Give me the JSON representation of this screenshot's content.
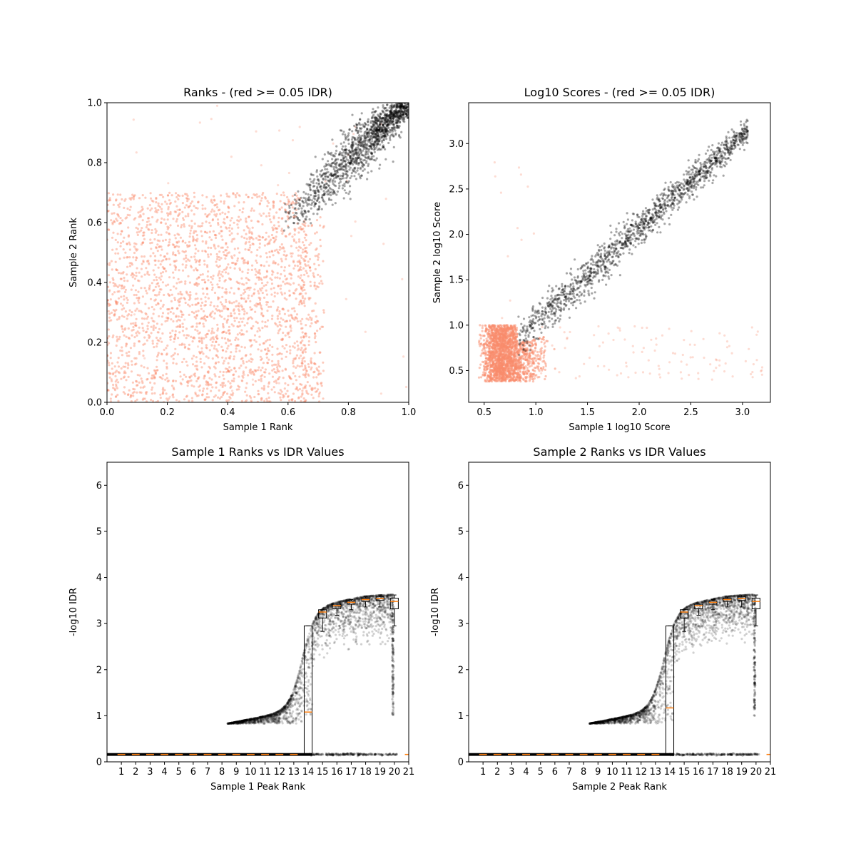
{
  "chart_data": [
    {
      "id": "ranks",
      "type": "scatter",
      "title": "Ranks - (red >= 0.05 IDR)",
      "xlabel": "Sample 1 Rank",
      "ylabel": "Sample 2 Rank",
      "xlim": [
        0,
        1.0
      ],
      "ylim": [
        0,
        1.0
      ],
      "xticks": [
        0.0,
        0.2,
        0.4,
        0.6,
        0.8,
        1.0
      ],
      "xtick_labels": [
        "0.0",
        "0.2",
        "0.4",
        "0.6",
        "0.8",
        "1.0"
      ],
      "yticks": [
        0.0,
        0.2,
        0.4,
        0.6,
        0.8,
        1.0
      ],
      "ytick_labels": [
        "0.0",
        "0.2",
        "0.4",
        "0.6",
        "0.8",
        "1.0"
      ],
      "grid": false,
      "legend": "none",
      "colors": {
        "low_idr": "#fa8c6c",
        "high_idr": "#000000"
      },
      "series": [
        {
          "color_key": "low_idr",
          "region": "uniform",
          "x_range": [
            0.0,
            0.72
          ],
          "y_range": [
            0.0,
            0.7
          ],
          "approx_points": 2600
        },
        {
          "color_key": "high_idr",
          "region": "diagonal",
          "x_range": [
            0.57,
            1.0
          ],
          "y_start": 0.57,
          "y_end": 1.0,
          "approx_points": 1500
        }
      ]
    },
    {
      "id": "scores",
      "type": "scatter",
      "title": "Log10 Scores - (red >= 0.05 IDR)",
      "xlabel": "Sample 1 log10 Score",
      "ylabel": "Sample 2 log10 Score",
      "xlim": [
        0.35,
        3.27
      ],
      "ylim": [
        0.15,
        3.45
      ],
      "xticks": [
        0.5,
        1.0,
        1.5,
        2.0,
        2.5,
        3.0
      ],
      "xtick_labels": [
        "0.5",
        "1.0",
        "1.5",
        "2.0",
        "2.5",
        "3.0"
      ],
      "yticks": [
        0.5,
        1.0,
        1.5,
        2.0,
        2.5,
        3.0
      ],
      "ytick_labels": [
        "0.5",
        "1.0",
        "1.5",
        "2.0",
        "2.5",
        "3.0"
      ],
      "grid": false,
      "legend": "none",
      "colors": {
        "low_idr": "#fa8c6c",
        "high_idr": "#000000"
      },
      "series": [
        {
          "color_key": "low_idr",
          "region": "cluster",
          "x_range": [
            0.45,
            1.1
          ],
          "y_range": [
            0.33,
            1.05
          ],
          "approx_points": 2200
        },
        {
          "color_key": "high_idr",
          "region": "diagonal",
          "x_range": [
            0.82,
            3.05
          ],
          "y_start": 0.83,
          "y_end": 3.2,
          "approx_points": 1400
        }
      ]
    },
    {
      "id": "s1idr",
      "type": "scatter",
      "title": "Sample 1 Ranks vs IDR Values",
      "xlabel": "Sample 1 Peak Rank",
      "ylabel": "-log10 IDR",
      "xlim": [
        0,
        21
      ],
      "ylim": [
        0,
        6.5
      ],
      "xticks": [
        1,
        2,
        3,
        4,
        5,
        6,
        7,
        8,
        9,
        10,
        11,
        12,
        13,
        14,
        15,
        16,
        17,
        18,
        19,
        20,
        21
      ],
      "xtick_labels": [
        "1",
        "2",
        "3",
        "4",
        "5",
        "6",
        "7",
        "8",
        "9",
        "10",
        "11",
        "12",
        "13",
        "14",
        "15",
        "16",
        "17",
        "18",
        "19",
        "20",
        "21"
      ],
      "yticks": [
        0,
        1,
        2,
        3,
        4,
        5,
        6
      ],
      "ytick_labels": [
        "0",
        "1",
        "2",
        "3",
        "4",
        "5",
        "6"
      ],
      "grid": false,
      "legend": "none",
      "colors": {
        "points": "#000000",
        "median": "#ff7f0e"
      },
      "baseline_value": 0.16,
      "curve": {
        "x_start": 8.4,
        "x_end": 19.9,
        "y_start": 0.83,
        "y_end": 3.63
      },
      "boxes": [
        {
          "x": 14,
          "q1": 0.16,
          "median": 1.08,
          "q3": 2.95,
          "whisker_low": 0.16,
          "whisker_high": 2.95
        },
        {
          "x": 15,
          "q1": 3.12,
          "median": 3.25,
          "q3": 3.3,
          "whisker_low": 2.83,
          "whisker_high": 3.3
        },
        {
          "x": 16,
          "q1": 3.32,
          "median": 3.39,
          "q3": 3.42,
          "whisker_low": 3.18,
          "whisker_high": 3.42
        },
        {
          "x": 17,
          "q1": 3.42,
          "median": 3.46,
          "q3": 3.49,
          "whisker_low": 3.3,
          "whisker_high": 3.52
        },
        {
          "x": 18,
          "q1": 3.48,
          "median": 3.52,
          "q3": 3.55,
          "whisker_low": 3.36,
          "whisker_high": 3.58
        },
        {
          "x": 19,
          "q1": 3.5,
          "median": 3.54,
          "q3": 3.58,
          "whisker_low": 3.36,
          "whisker_high": 3.62
        },
        {
          "x": 20,
          "q1": 3.32,
          "median": 3.48,
          "q3": 3.55,
          "whisker_low": 2.95,
          "whisker_high": 3.62
        }
      ]
    },
    {
      "id": "s2idr",
      "type": "scatter",
      "title": "Sample 2 Ranks vs IDR Values",
      "xlabel": "Sample 2 Peak Rank",
      "ylabel": "-log10 IDR",
      "xlim": [
        0,
        21
      ],
      "ylim": [
        0,
        6.5
      ],
      "xticks": [
        1,
        2,
        3,
        4,
        5,
        6,
        7,
        8,
        9,
        10,
        11,
        12,
        13,
        14,
        15,
        16,
        17,
        18,
        19,
        20,
        21
      ],
      "xtick_labels": [
        "1",
        "2",
        "3",
        "4",
        "5",
        "6",
        "7",
        "8",
        "9",
        "10",
        "11",
        "12",
        "13",
        "14",
        "15",
        "16",
        "17",
        "18",
        "19",
        "20",
        "21"
      ],
      "yticks": [
        0,
        1,
        2,
        3,
        4,
        5,
        6
      ],
      "ytick_labels": [
        "0",
        "1",
        "2",
        "3",
        "4",
        "5",
        "6"
      ],
      "grid": false,
      "legend": "none",
      "colors": {
        "points": "#000000",
        "median": "#ff7f0e"
      },
      "baseline_value": 0.16,
      "curve": {
        "x_start": 8.4,
        "x_end": 19.9,
        "y_start": 0.83,
        "y_end": 3.63
      },
      "boxes": [
        {
          "x": 14,
          "q1": 0.16,
          "median": 1.17,
          "q3": 2.95,
          "whisker_low": 0.16,
          "whisker_high": 2.95
        },
        {
          "x": 15,
          "q1": 3.12,
          "median": 3.25,
          "q3": 3.3,
          "whisker_low": 2.83,
          "whisker_high": 3.3
        },
        {
          "x": 16,
          "q1": 3.32,
          "median": 3.39,
          "q3": 3.42,
          "whisker_low": 3.18,
          "whisker_high": 3.42
        },
        {
          "x": 17,
          "q1": 3.42,
          "median": 3.46,
          "q3": 3.49,
          "whisker_low": 3.3,
          "whisker_high": 3.52
        },
        {
          "x": 18,
          "q1": 3.48,
          "median": 3.52,
          "q3": 3.55,
          "whisker_low": 3.36,
          "whisker_high": 3.58
        },
        {
          "x": 19,
          "q1": 3.5,
          "median": 3.54,
          "q3": 3.58,
          "whisker_low": 3.36,
          "whisker_high": 3.62
        },
        {
          "x": 20,
          "q1": 3.32,
          "median": 3.48,
          "q3": 3.55,
          "whisker_low": 2.95,
          "whisker_high": 3.62
        }
      ]
    }
  ]
}
